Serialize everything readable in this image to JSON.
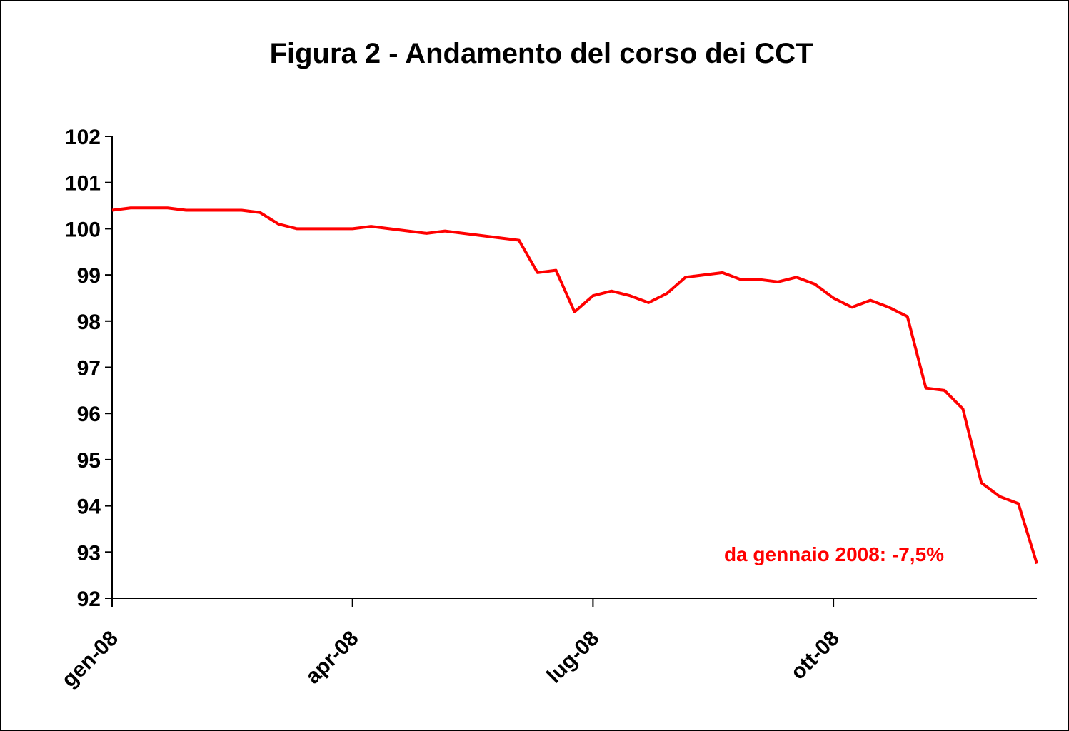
{
  "chart_data": {
    "type": "line",
    "title": "Figura 2 - Andamento del corso dei CCT",
    "annotation": "da gennaio 2008: -7,5%",
    "categories": [
      "gen-08",
      null,
      null,
      null,
      null,
      null,
      null,
      null,
      null,
      null,
      null,
      null,
      null,
      "apr-08",
      null,
      null,
      null,
      null,
      null,
      null,
      null,
      null,
      null,
      null,
      null,
      null,
      "lug-08",
      null,
      null,
      null,
      null,
      null,
      null,
      null,
      null,
      null,
      null,
      null,
      null,
      "ott-08",
      null,
      null,
      null,
      null,
      null,
      null,
      null,
      null,
      null,
      null,
      null
    ],
    "series": [
      {
        "name": "CCT",
        "color": "#ff0000",
        "values": [
          100.4,
          100.45,
          100.45,
          100.45,
          100.4,
          100.4,
          100.4,
          100.4,
          100.35,
          100.1,
          100.0,
          100.0,
          100.0,
          100.0,
          100.05,
          100.0,
          99.95,
          99.9,
          99.95,
          99.9,
          99.85,
          99.8,
          99.75,
          99.05,
          99.1,
          98.2,
          98.55,
          98.65,
          98.55,
          98.4,
          98.6,
          98.95,
          99.0,
          99.05,
          98.9,
          98.9,
          98.85,
          98.95,
          98.8,
          98.5,
          98.3,
          98.45,
          98.3,
          98.1,
          96.55,
          96.5,
          96.1,
          94.5,
          94.2,
          94.05,
          92.75
        ]
      }
    ],
    "ylim": [
      92,
      102
    ],
    "yticks": [
      92,
      93,
      94,
      95,
      96,
      97,
      98,
      99,
      100,
      101,
      102
    ]
  }
}
